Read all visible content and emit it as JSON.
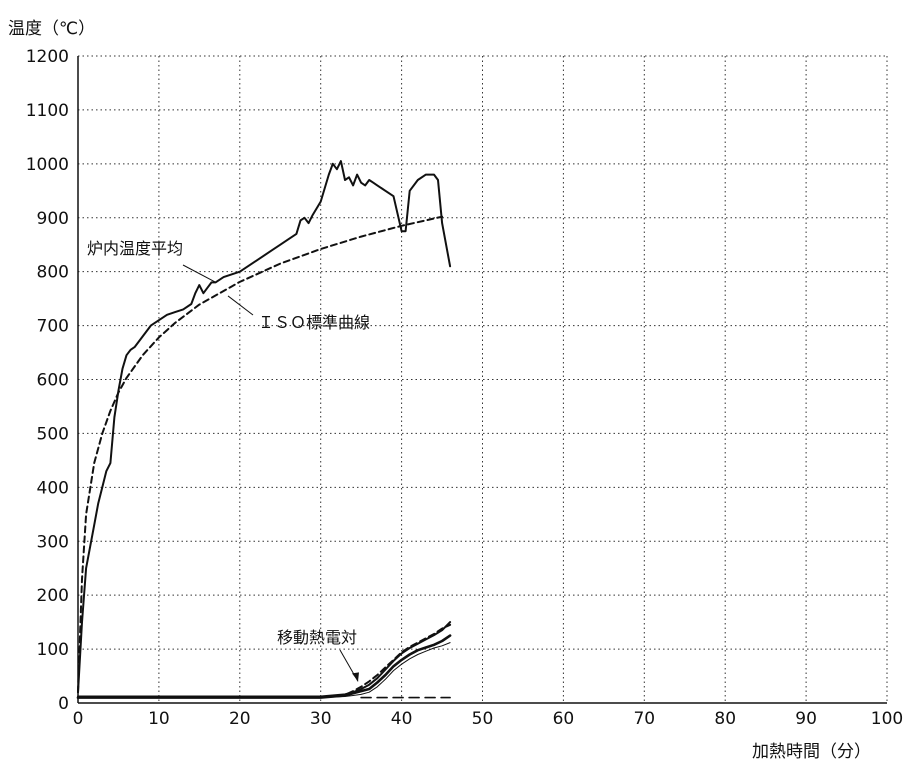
{
  "chart_data": {
    "type": "line",
    "ylabel": "温度（℃）",
    "xlabel": "加熱時間（分）",
    "xlim": [
      0,
      100
    ],
    "ylim": [
      0,
      1200
    ],
    "xticks": [
      0,
      10,
      20,
      30,
      40,
      50,
      60,
      70,
      80,
      90,
      100
    ],
    "yticks": [
      0,
      100,
      200,
      300,
      400,
      500,
      600,
      700,
      800,
      900,
      1000,
      1100,
      1200
    ],
    "grid": true,
    "annotations": [
      {
        "text": "炉内温度平均"
      },
      {
        "text": "ＩＳＯ標準曲線"
      },
      {
        "text": "移動熱電対"
      }
    ],
    "series": [
      {
        "name": "炉内温度平均",
        "style": "solid",
        "x": [
          0,
          0.5,
          1,
          2,
          2.5,
          3,
          3.5,
          4,
          4.5,
          5,
          5.5,
          6,
          6.5,
          7,
          8,
          9,
          10,
          11,
          12,
          13,
          14,
          14.5,
          15,
          15.5,
          16,
          16.5,
          17,
          18,
          20,
          22,
          24,
          25,
          26,
          27,
          27.5,
          28,
          28.5,
          29,
          30,
          31,
          31.5,
          32,
          32.5,
          33,
          33.5,
          34,
          34.5,
          35,
          35.5,
          36,
          36.5,
          37,
          38,
          39,
          40,
          40.5,
          41,
          42,
          43,
          44,
          44.5,
          45,
          46
        ],
        "y": [
          20,
          150,
          250,
          330,
          370,
          400,
          430,
          445,
          530,
          580,
          620,
          645,
          655,
          660,
          680,
          700,
          710,
          720,
          725,
          730,
          740,
          760,
          775,
          760,
          770,
          780,
          780,
          790,
          800,
          820,
          840,
          850,
          860,
          870,
          895,
          900,
          890,
          905,
          930,
          980,
          1000,
          990,
          1005,
          970,
          975,
          960,
          980,
          965,
          960,
          970,
          965,
          960,
          950,
          940,
          875,
          875,
          950,
          970,
          980,
          980,
          970,
          890,
          810
        ]
      },
      {
        "name": "ＩＳＯ標準曲線",
        "style": "dashed",
        "x": [
          0,
          0.5,
          1,
          2,
          3,
          4,
          5,
          6,
          8,
          10,
          12,
          15,
          20,
          25,
          30,
          35,
          40,
          45
        ],
        "y": [
          20,
          230,
          350,
          445,
          500,
          542,
          576,
          603,
          645,
          678,
          705,
          739,
          781,
          815,
          842,
          865,
          885,
          902
        ]
      },
      {
        "name": "移動熱電対 1",
        "style": "solid-thick",
        "x": [
          0,
          10,
          20,
          30,
          33,
          34,
          35,
          36,
          37,
          38,
          39,
          40,
          41,
          42,
          43,
          44,
          45,
          46
        ],
        "y": [
          10,
          10,
          10,
          10,
          14,
          18,
          22,
          26,
          38,
          52,
          68,
          80,
          90,
          98,
          103,
          108,
          115,
          125
        ]
      },
      {
        "name": "移動熱電対 2",
        "style": "solid",
        "x": [
          0,
          10,
          20,
          30,
          33,
          34,
          35,
          36,
          37,
          38,
          39,
          40,
          41,
          42,
          43,
          44,
          45,
          46
        ],
        "y": [
          12,
          12,
          12,
          12,
          16,
          20,
          26,
          34,
          46,
          62,
          78,
          92,
          102,
          110,
          118,
          126,
          135,
          150
        ]
      },
      {
        "name": "移動熱電対 3",
        "style": "dashed",
        "x": [
          0,
          10,
          20,
          30,
          33,
          34,
          35,
          36,
          37,
          38,
          39,
          40,
          41,
          42,
          43,
          44,
          45,
          46
        ],
        "y": [
          11,
          11,
          11,
          11,
          15,
          22,
          30,
          40,
          52,
          66,
          80,
          94,
          104,
          112,
          120,
          128,
          138,
          145
        ]
      },
      {
        "name": "移動熱電対 4",
        "style": "solid-thin",
        "x": [
          0,
          10,
          20,
          30,
          33,
          34,
          35,
          36,
          37,
          38,
          39,
          40,
          41,
          42,
          43,
          44,
          45,
          46
        ],
        "y": [
          10,
          10,
          10,
          10,
          12,
          14,
          16,
          20,
          30,
          44,
          60,
          72,
          82,
          90,
          96,
          102,
          106,
          112
        ]
      },
      {
        "name": "移動熱電対 5",
        "style": "dashed-long",
        "x": [
          35,
          38,
          42,
          46
        ],
        "y": [
          10,
          10,
          10,
          10
        ]
      }
    ]
  }
}
